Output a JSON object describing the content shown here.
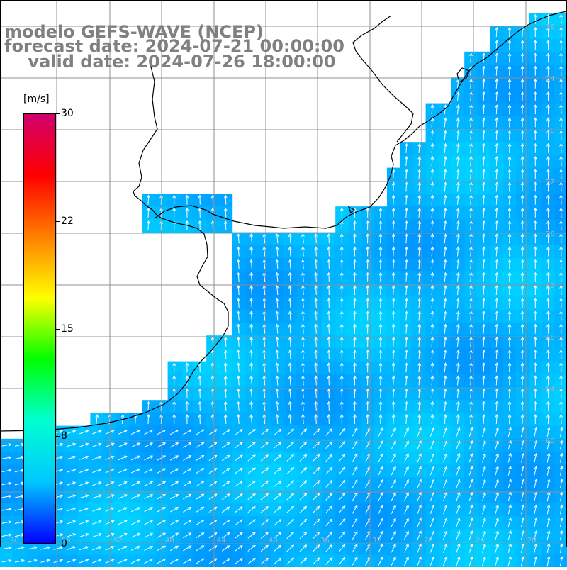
{
  "title": {
    "line1": "modelo GEFS-WAVE (NCEP)",
    "line2": "forecast date: 2024-07-21 00:00:00",
    "line3": "    valid date: 2024-07-26 18:00:00"
  },
  "colorbar": {
    "unit": "[m/s]",
    "ticks": [
      "30",
      "22",
      "15",
      "8",
      "0"
    ],
    "tick_values": [
      30,
      22.5,
      15,
      7.5,
      0
    ],
    "min": 0,
    "max": 30,
    "colors": [
      "#0000ff",
      "#00c8ff",
      "#00ffd0",
      "#00ff00",
      "#ffff00",
      "#ff8000",
      "#ff0000",
      "#d0006e"
    ]
  },
  "field": {
    "variable": "wind speed and direction",
    "typical_speed_ms": 6,
    "land_color": "#ffffff",
    "coastline_color": "#000000",
    "grid_color": "#909090"
  },
  "axis_labels": {
    "right": [
      "18",
      "24",
      "30",
      "32",
      "36",
      "42",
      "48",
      "54",
      "60"
    ],
    "bottom": [
      "60",
      "56",
      "52",
      "48",
      "44",
      "40",
      "36",
      "32",
      "28",
      "24",
      "20"
    ]
  }
}
